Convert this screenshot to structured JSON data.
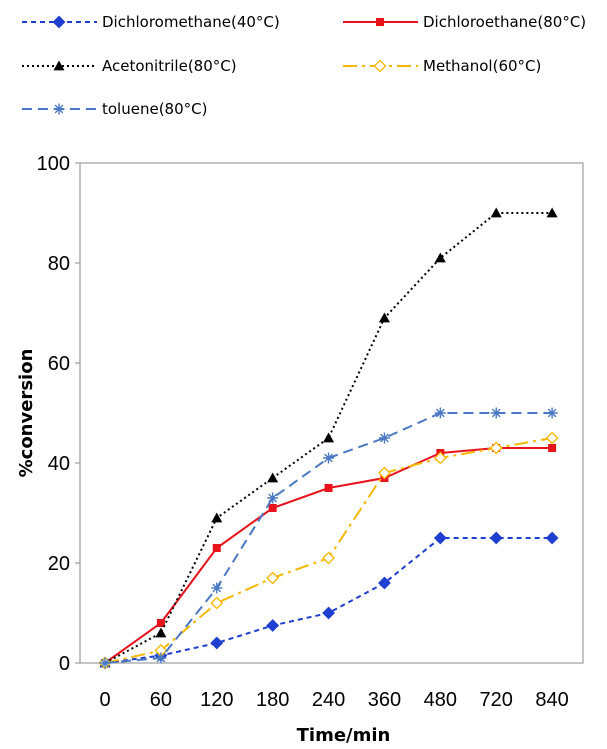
{
  "chart_data": {
    "type": "line",
    "title": "",
    "xlabel": "Time/min",
    "ylabel": "%conversion",
    "categories": [
      "0",
      "60",
      "120",
      "180",
      "240",
      "360",
      "480",
      "720",
      "840"
    ],
    "ylim": [
      0,
      100
    ],
    "yticks": [
      "0",
      "20",
      "40",
      "60",
      "80",
      "100"
    ],
    "grid": false,
    "legend_position": "top",
    "series": [
      {
        "name": "Dichloromethane(40°C)",
        "color": "#1F3FD0",
        "marker": "diamond-filled",
        "dash": "dashed",
        "values": [
          0,
          1.5,
          4,
          7.5,
          10,
          16,
          25,
          25,
          25
        ]
      },
      {
        "name": "Dichloroethane(80°C)",
        "color": "#E8131B",
        "marker": "square-filled",
        "dash": "solid",
        "values": [
          0,
          8,
          23,
          31,
          35,
          37,
          42,
          43,
          43
        ]
      },
      {
        "name": "Acetonitrile(80°C)",
        "color": "#000000",
        "marker": "triangle-filled",
        "dash": "dotted",
        "values": [
          0,
          6,
          29,
          37,
          45,
          69,
          81,
          90,
          90
        ]
      },
      {
        "name": "Methanol(60°C)",
        "color": "#F5B800",
        "marker": "diamond-open",
        "dash": "dashdot",
        "values": [
          0,
          2.5,
          12,
          17,
          21,
          38,
          41,
          43,
          45
        ]
      },
      {
        "name": "toluene(80°C)",
        "color": "#4A78C2",
        "marker": "asterisk",
        "dash": "longdash",
        "values": [
          0,
          1,
          15,
          33,
          41,
          45,
          50,
          50,
          50
        ]
      }
    ]
  }
}
